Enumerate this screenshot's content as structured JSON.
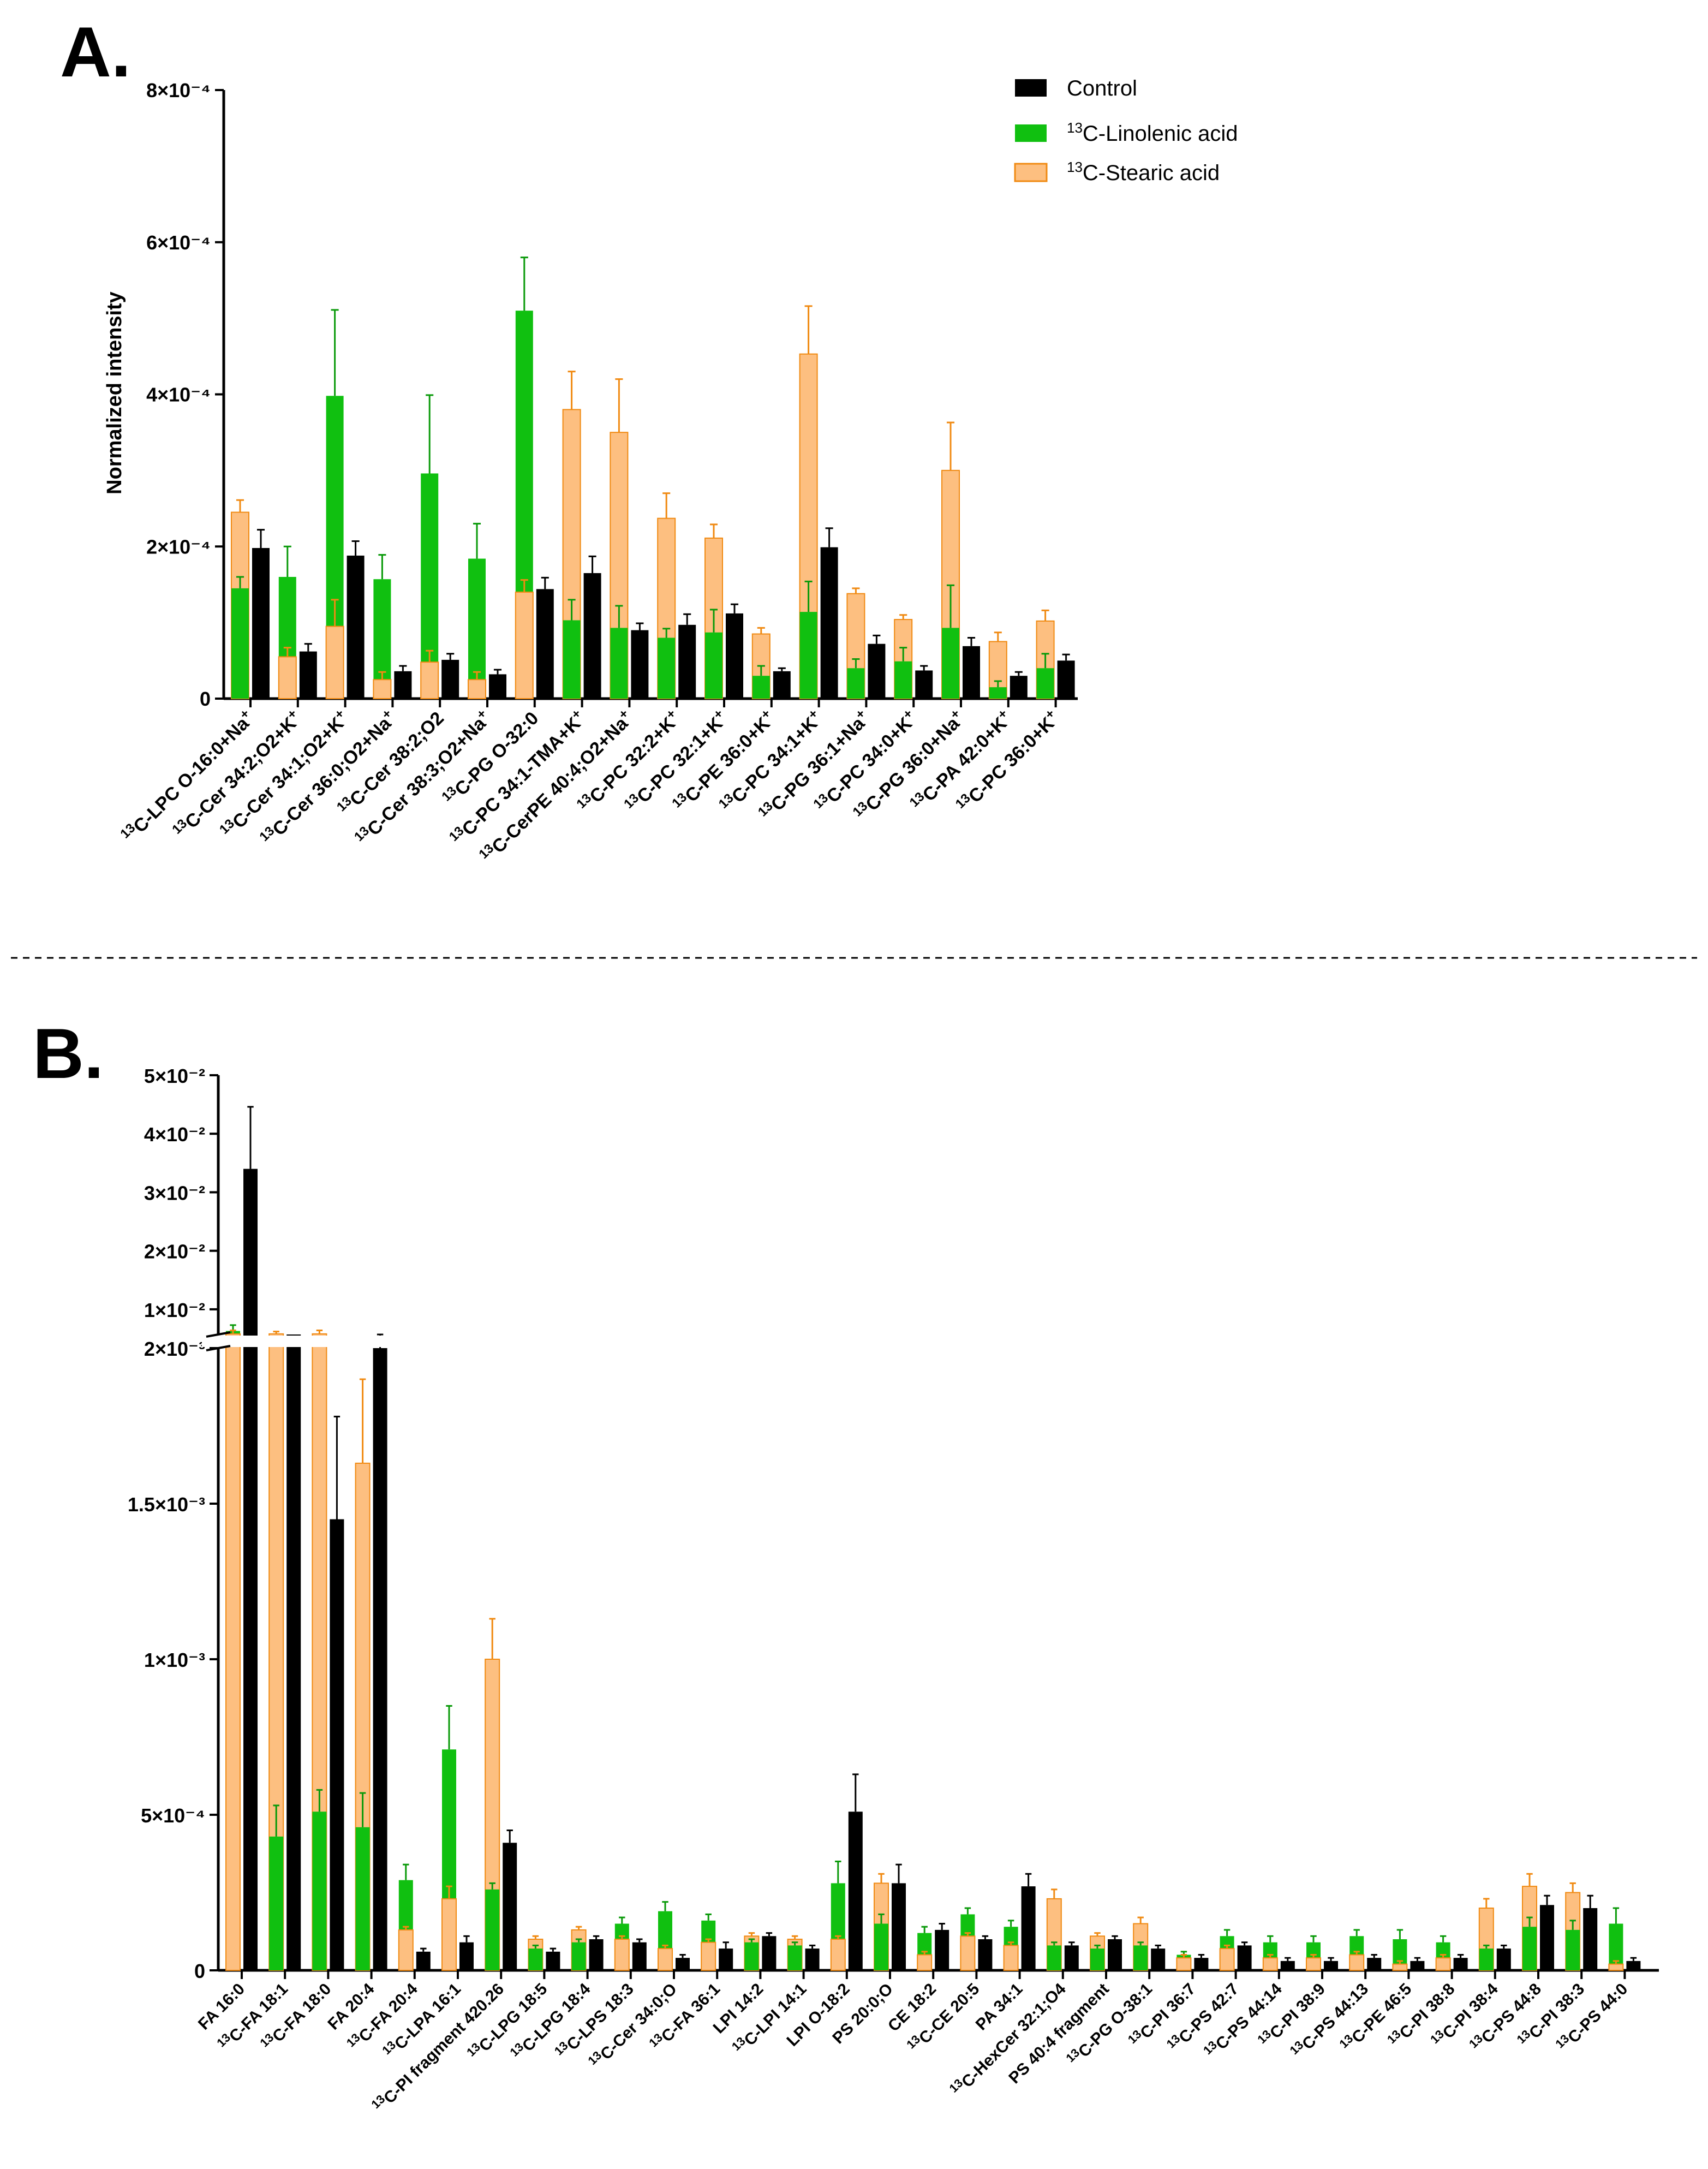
{
  "colors": {
    "control": "#000000",
    "linolenic_fill": "#10c010",
    "linolenic_edge": "#0a9a0a",
    "stearic_fill": "#fdbf80",
    "stearic_edge": "#f08a12"
  },
  "legend": [
    "Control",
    "13C-Linolenic acid",
    "13C-Stearic acid"
  ],
  "chart_data": [
    {
      "panel": "A.",
      "type": "bar",
      "ylabel": "Normalized intensity",
      "ylim": [
        0,
        0.0008
      ],
      "yticks": [
        0,
        0.0002,
        0.0004,
        0.0006,
        0.0008
      ],
      "ytick_labels": [
        "0",
        "2×10⁻⁴",
        "4×10⁻⁴",
        "6×10⁻⁴",
        "8×10⁻⁴"
      ],
      "categories": [
        "13C-LPC O-16:0+Na+",
        "13C-Cer 34:2;O2+K+",
        "13C-Cer 34:1;O2+K+",
        "13C-Cer 36:0;O2+Na+",
        "13C-Cer 38:2;O2",
        "13C-Cer 38:3;O2+Na+",
        "13C-PG O-32:0",
        "13C-PC 34:1-TMA+K+",
        "13C-CerPE 40:4;O2+Na+",
        "13C-PC 32:2+K+",
        "13C-PC 32:1+K+",
        "13C-PE 36:0+K+",
        "13C-PC 34:1+K+",
        "13C-PG 36:1+Na+",
        "13C-PC 34:0+K+",
        "13C-PG 36:0+Na+",
        "13C-PA 42:0+K+",
        "13C-PC 36:0+K+"
      ],
      "series": [
        {
          "name": "13C-Stearic acid",
          "values": [
            0.000245,
            5.5e-05,
            9.5e-05,
            2.5e-05,
            4.8e-05,
            2.5e-05,
            0.00014,
            0.00038,
            0.00035,
            0.000237,
            0.000211,
            8.5e-05,
            0.000453,
            0.000138,
            0.000104,
            0.0003,
            7.5e-05,
            0.000102
          ],
          "errors": [
            1.6e-05,
            1.2e-05,
            3.5e-05,
            1e-05,
            1.5e-05,
            1e-05,
            1.6e-05,
            5e-05,
            7e-05,
            3.3e-05,
            1.8e-05,
            8e-06,
            6.3e-05,
            7e-06,
            6e-06,
            6.3e-05,
            1.2e-05,
            1.4e-05
          ]
        },
        {
          "name": "13C-Linolenic acid",
          "values": [
            0.000145,
            0.00016,
            0.000398,
            0.000157,
            0.000296,
            0.000184,
            0.00051,
            0.000103,
            9.3e-05,
            8e-05,
            8.7e-05,
            3e-05,
            0.000114,
            4e-05,
            4.9e-05,
            9.3e-05,
            1.5e-05,
            4e-05
          ],
          "errors": [
            1.5e-05,
            4e-05,
            0.000113,
            3.2e-05,
            0.000103,
            4.6e-05,
            7e-05,
            2.7e-05,
            2.9e-05,
            1.2e-05,
            3e-05,
            1.3e-05,
            4e-05,
            1.2e-05,
            1.8e-05,
            5.6e-05,
            8e-06,
            1.9e-05
          ]
        },
        {
          "name": "Control",
          "values": [
            0.000198,
            6.2e-05,
            0.000188,
            3.6e-05,
            5.1e-05,
            3.2e-05,
            0.000144,
            0.000165,
            9e-05,
            9.7e-05,
            0.000112,
            3.6e-05,
            0.000199,
            7.2e-05,
            3.7e-05,
            6.9e-05,
            3e-05,
            5e-05
          ],
          "errors": [
            2.4e-05,
            1e-05,
            1.9e-05,
            7e-06,
            8e-06,
            6e-06,
            1.5e-05,
            2.2e-05,
            9e-06,
            1.4e-05,
            1.2e-05,
            4e-06,
            2.5e-05,
            1.1e-05,
            6e-06,
            1.1e-05,
            5e-06,
            8e-06
          ]
        }
      ]
    },
    {
      "panel": "B.",
      "type": "bar",
      "ylabel": "",
      "broken_axis": {
        "lower_ylim": [
          0,
          0.002
        ],
        "upper_ylim": [
          0.0057,
          0.05
        ]
      },
      "yticks": [
        0,
        0.0005,
        0.001,
        0.0015,
        0.002,
        0.01,
        0.02,
        0.03,
        0.04,
        0.05
      ],
      "ytick_labels": [
        "0",
        "5×10⁻⁴",
        "1×10⁻³",
        "1.5×10⁻³",
        "2×10⁻³",
        "1×10⁻²",
        "2×10⁻²",
        "3×10⁻²",
        "4×10⁻²",
        "5×10⁻²"
      ],
      "categories": [
        "FA 16:0",
        "13C-FA 18:1",
        "13C-FA 18:0",
        "FA 20:4",
        "13C-FA 20:4",
        "13C-LPA 16:1",
        "13C-PI fragment 420.26",
        "13C-LPG 18:5",
        "13C-LPG 18:4",
        "13C-LPS 18:3",
        "13C-Cer 34:0;O",
        "13C-FA 36:1",
        "LPI 14:2",
        "13C-LPI 14:1",
        "LPI O-18:2",
        "PS 20:0;O",
        "CE 18:2",
        "13C-CE 20:5",
        "PA 34:1",
        "13C-HexCer 32:1;O4",
        "PS 40:4 fragment",
        "13C-PG O-38:1",
        "13C-PI 36:7",
        "13C-PS 42:7",
        "13C-PS 44:14",
        "13C-PI 38:9",
        "13C-PS 44:13",
        "13C-PE 46:5",
        "13C-PI 38:8",
        "13C-PI 38:4",
        "13C-PS 44:8",
        "13C-PI 38:3",
        "13C-PS 44:0"
      ],
      "series": [
        {
          "name": "13C-Stearic acid",
          "values": [
            0.0058,
            0.0058,
            0.0058,
            0.00163,
            0.00013,
            0.00023,
            0.001,
            0.0001,
            0.00013,
            0.0001,
            7e-05,
            9e-05,
            0.00011,
            0.0001,
            0.0001,
            0.00028,
            5e-05,
            0.00011,
            8e-05,
            0.00023,
            0.00011,
            0.00015,
            4e-05,
            7e-05,
            4e-05,
            4e-05,
            5e-05,
            2e-05,
            4e-05,
            0.0002,
            0.00027,
            0.00025,
            2e-05
          ],
          "errors": [
            0.0006,
            0.0004,
            0.0006,
            0.00027,
            1e-05,
            4e-05,
            0.00013,
            1e-05,
            1e-05,
            1e-05,
            1e-05,
            1e-05,
            1e-05,
            1e-05,
            1e-05,
            3e-05,
            1e-05,
            1e-05,
            1e-05,
            3e-05,
            1e-05,
            2e-05,
            1e-05,
            1e-05,
            1e-05,
            1e-05,
            1e-05,
            1e-05,
            1e-05,
            3e-05,
            4e-05,
            3e-05,
            1e-05
          ]
        },
        {
          "name": "13C-Linolenic acid",
          "values": [
            0.0063,
            0.00043,
            0.00051,
            0.00046,
            0.00029,
            0.00071,
            0.00026,
            7e-05,
            9e-05,
            0.00015,
            0.00019,
            0.00016,
            9e-05,
            8e-05,
            0.00028,
            0.00015,
            0.00012,
            0.00018,
            0.00014,
            8e-05,
            7e-05,
            8e-05,
            5e-05,
            0.00011,
            9e-05,
            9e-05,
            0.00011,
            0.0001,
            9e-05,
            7e-05,
            0.00014,
            0.00013,
            0.00015
          ],
          "errors": [
            0.001,
            0.0001,
            7e-05,
            0.00011,
            5e-05,
            0.00014,
            2e-05,
            1e-05,
            1e-05,
            2e-05,
            3e-05,
            2e-05,
            1e-05,
            1e-05,
            7e-05,
            3e-05,
            2e-05,
            2e-05,
            2e-05,
            1e-05,
            1e-05,
            1e-05,
            1e-05,
            2e-05,
            2e-05,
            2e-05,
            2e-05,
            3e-05,
            2e-05,
            1e-05,
            3e-05,
            3e-05,
            5e-05
          ]
        },
        {
          "name": "Control",
          "values": [
            0.034,
            0.00205,
            0.00145,
            0.002,
            6e-05,
            9e-05,
            0.00041,
            6e-05,
            0.0001,
            9e-05,
            4e-05,
            7e-05,
            0.00011,
            7e-05,
            0.00051,
            0.00028,
            0.00013,
            0.0001,
            0.00027,
            8e-05,
            0.0001,
            7e-05,
            4e-05,
            8e-05,
            3e-05,
            3e-05,
            4e-05,
            3e-05,
            4e-05,
            7e-05,
            0.00021,
            0.0002,
            3e-05
          ],
          "errors": [
            0.0106,
            5e-05,
            0.00033,
            2e-05,
            1e-05,
            2e-05,
            4e-05,
            1e-05,
            1e-05,
            1e-05,
            1e-05,
            2e-05,
            1e-05,
            1e-05,
            0.00012,
            6e-05,
            2e-05,
            1e-05,
            4e-05,
            1e-05,
            1e-05,
            1e-05,
            1e-05,
            1e-05,
            1e-05,
            1e-05,
            1e-05,
            1e-05,
            1e-05,
            1e-05,
            3e-05,
            4e-05,
            1e-05
          ]
        }
      ]
    }
  ]
}
